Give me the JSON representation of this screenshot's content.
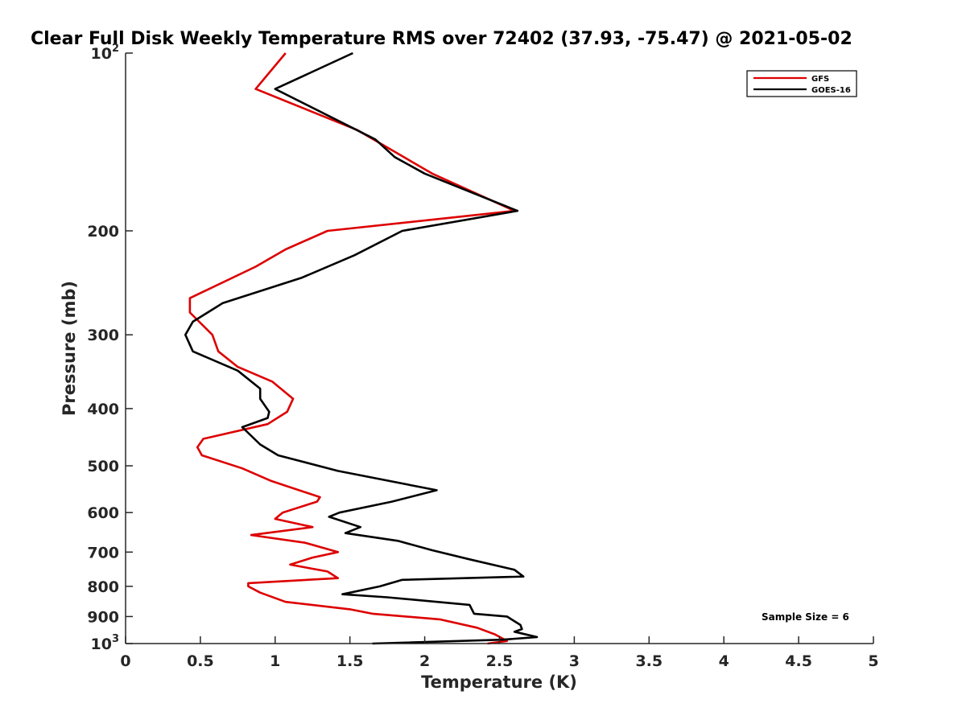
{
  "chart_data": {
    "type": "line",
    "title": "Clear Full Disk Weekly Temperature RMS over 72402 (37.93, -75.47) @ 2021-05-02",
    "xlabel": "Temperature (K)",
    "ylabel": "Pressure (mb)",
    "xlim": [
      0,
      5
    ],
    "ylim": [
      100,
      1000
    ],
    "y_scale": "log",
    "y_reversed": true,
    "grid": false,
    "legend_position": "top-right",
    "x_ticks": [
      0,
      0.5,
      1,
      1.5,
      2,
      2.5,
      3,
      3.5,
      4,
      4.5,
      5
    ],
    "x_tick_labels": [
      "0",
      "0.5",
      "1",
      "1.5",
      "2",
      "2.5",
      "3",
      "3.5",
      "4",
      "4.5",
      "5"
    ],
    "y_ticks": [
      100,
      200,
      300,
      400,
      500,
      600,
      700,
      800,
      900,
      1000
    ],
    "y_tick_labels": [
      {
        "base": "10",
        "exp": "2"
      },
      {
        "base": "200",
        "exp": ""
      },
      {
        "base": "300",
        "exp": ""
      },
      {
        "base": "400",
        "exp": ""
      },
      {
        "base": "500",
        "exp": ""
      },
      {
        "base": "600",
        "exp": ""
      },
      {
        "base": "700",
        "exp": ""
      },
      {
        "base": "800",
        "exp": ""
      },
      {
        "base": "900",
        "exp": ""
      },
      {
        "base": "10",
        "exp": "3"
      }
    ],
    "annotation": "Sample Size = 6",
    "series": [
      {
        "name": "GFS",
        "color": "#dd0000",
        "points": [
          [
            1.07,
            100
          ],
          [
            0.87,
            115
          ],
          [
            1.55,
            135
          ],
          [
            2.05,
            160
          ],
          [
            2.6,
            185
          ],
          [
            1.35,
            200
          ],
          [
            1.07,
            215
          ],
          [
            0.87,
            230
          ],
          [
            0.43,
            260
          ],
          [
            0.43,
            275
          ],
          [
            0.58,
            300
          ],
          [
            0.62,
            320
          ],
          [
            0.75,
            340
          ],
          [
            0.98,
            360
          ],
          [
            1.12,
            385
          ],
          [
            1.08,
            405
          ],
          [
            0.95,
            425
          ],
          [
            0.52,
            450
          ],
          [
            0.48,
            465
          ],
          [
            0.51,
            480
          ],
          [
            0.78,
            505
          ],
          [
            0.97,
            530
          ],
          [
            1.3,
            565
          ],
          [
            1.28,
            575
          ],
          [
            1.05,
            600
          ],
          [
            1.0,
            615
          ],
          [
            1.25,
            635
          ],
          [
            0.84,
            655
          ],
          [
            1.2,
            675
          ],
          [
            1.42,
            700
          ],
          [
            1.25,
            715
          ],
          [
            1.1,
            735
          ],
          [
            1.35,
            755
          ],
          [
            1.42,
            775
          ],
          [
            0.82,
            790
          ],
          [
            0.82,
            800
          ],
          [
            0.9,
            820
          ],
          [
            1.07,
            850
          ],
          [
            1.5,
            875
          ],
          [
            1.65,
            890
          ],
          [
            2.1,
            910
          ],
          [
            2.35,
            940
          ],
          [
            2.47,
            965
          ],
          [
            2.55,
            990
          ],
          [
            2.42,
            1000
          ]
        ]
      },
      {
        "name": "GOES-16",
        "color": "#000000",
        "points": [
          [
            1.52,
            100
          ],
          [
            1.0,
            115
          ],
          [
            1.67,
            140
          ],
          [
            1.8,
            150
          ],
          [
            2.0,
            160
          ],
          [
            2.62,
            185
          ],
          [
            1.85,
            200
          ],
          [
            1.53,
            220
          ],
          [
            1.18,
            240
          ],
          [
            0.65,
            265
          ],
          [
            0.45,
            285
          ],
          [
            0.4,
            300
          ],
          [
            0.45,
            320
          ],
          [
            0.75,
            345
          ],
          [
            0.9,
            370
          ],
          [
            0.9,
            385
          ],
          [
            0.96,
            405
          ],
          [
            0.95,
            415
          ],
          [
            0.78,
            430
          ],
          [
            0.9,
            460
          ],
          [
            1.02,
            480
          ],
          [
            1.42,
            510
          ],
          [
            2.08,
            550
          ],
          [
            1.78,
            575
          ],
          [
            1.43,
            600
          ],
          [
            1.36,
            610
          ],
          [
            1.57,
            635
          ],
          [
            1.47,
            650
          ],
          [
            1.82,
            670
          ],
          [
            2.05,
            695
          ],
          [
            2.3,
            720
          ],
          [
            2.6,
            750
          ],
          [
            2.66,
            770
          ],
          [
            1.85,
            780
          ],
          [
            1.7,
            800
          ],
          [
            1.45,
            825
          ],
          [
            1.75,
            835
          ],
          [
            2.3,
            860
          ],
          [
            2.33,
            890
          ],
          [
            2.55,
            900
          ],
          [
            2.64,
            930
          ],
          [
            2.65,
            945
          ],
          [
            2.6,
            955
          ],
          [
            2.75,
            975
          ],
          [
            2.52,
            985
          ],
          [
            1.65,
            1000
          ]
        ]
      }
    ]
  }
}
